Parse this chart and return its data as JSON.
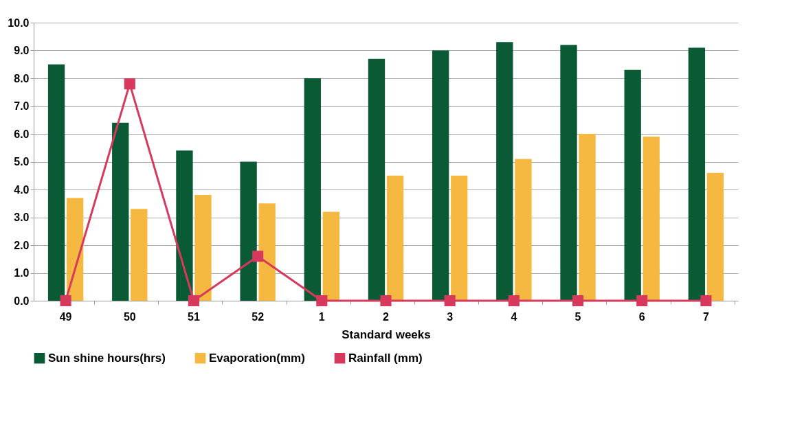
{
  "chart_data": {
    "type": "bar",
    "xlabel": "Standard weeks",
    "categories": [
      "49",
      "50",
      "51",
      "52",
      "1",
      "2",
      "3",
      "4",
      "5",
      "6",
      "7"
    ],
    "series": [
      {
        "name": "Sun shine hours(hrs)",
        "color": "#0b5a36",
        "values": [
          8.5,
          6.4,
          5.4,
          5.0,
          8.0,
          8.7,
          9.0,
          9.3,
          9.2,
          8.3,
          9.1
        ]
      },
      {
        "name": "Evaporation(mm)",
        "color": "#f5b942",
        "values": [
          3.7,
          3.3,
          3.8,
          3.5,
          3.2,
          4.5,
          4.5,
          5.1,
          6.0,
          5.9,
          4.6
        ]
      },
      {
        "name": "Rainfall (mm)",
        "type": "line",
        "color": "#d6395c",
        "marker": "square",
        "line_style": "solid",
        "values": [
          0.0,
          7.8,
          0.0,
          1.6,
          0.0,
          0.0,
          0.0,
          0.0,
          0.0,
          0.0,
          0.0
        ]
      }
    ],
    "ylim": [
      0,
      10
    ],
    "yticks": [
      {
        "value": 0,
        "label": "0.0"
      },
      {
        "value": 1,
        "label": "1.0"
      },
      {
        "value": 2,
        "label": "2.0"
      },
      {
        "value": 3,
        "label": "3.0"
      },
      {
        "value": 4,
        "label": "4.0"
      },
      {
        "value": 5,
        "label": "5.0"
      },
      {
        "value": 6,
        "label": "6.0"
      },
      {
        "value": 7,
        "label": "7.0"
      },
      {
        "value": 8,
        "label": "8.0"
      },
      {
        "value": 9,
        "label": "9.0"
      },
      {
        "value": 10,
        "label": "10.0"
      }
    ],
    "grid": "y",
    "legend": "bottom"
  }
}
